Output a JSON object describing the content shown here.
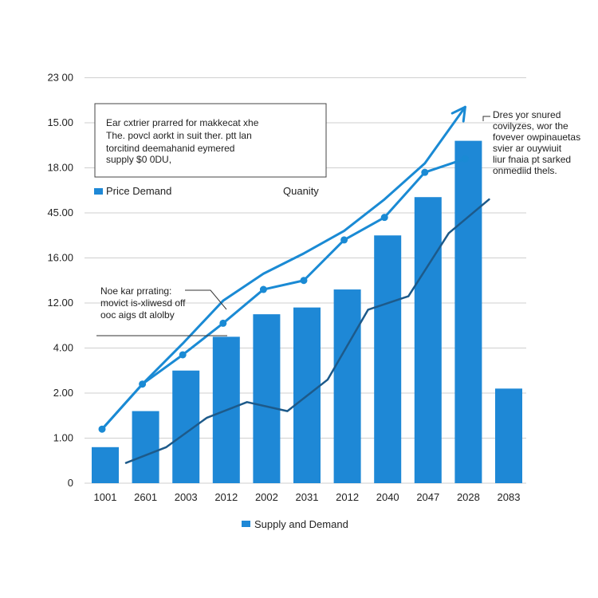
{
  "chart_data": {
    "type": "bar",
    "categories": [
      "1001",
      "2601",
      "2003",
      "2012",
      "2002",
      "2031",
      "2012",
      "2040",
      "2047",
      "2028",
      "2083"
    ],
    "y_tick_labels": [
      "0",
      "1.00",
      "2.00",
      "4.00",
      "12.00",
      "16.00",
      "45.00",
      "18.00",
      "15.00",
      "23 00"
    ],
    "grid": true,
    "bars": {
      "name": "Supply and Demand",
      "color": "#1e88d6",
      "values": [
        0.8,
        1.6,
        2.5,
        3.25,
        3.75,
        3.9,
        4.3,
        5.5,
        6.35,
        7.6,
        2.1
      ]
    },
    "lines": [
      {
        "name": "",
        "color": "#1a8ad4",
        "markers": false,
        "arrow": true,
        "values": [
          1.2,
          2.2,
          3.1,
          4.05,
          4.65,
          5.1,
          5.6,
          6.3,
          7.1,
          8.35
        ]
      },
      {
        "name": "",
        "color": "#1a8ad4",
        "markers": true,
        "arrow": false,
        "values": [
          1.2,
          2.2,
          2.85,
          3.55,
          4.3,
          4.5,
          5.4,
          5.9,
          6.9,
          7.2
        ]
      },
      {
        "name": "",
        "color": "#1d5a8a",
        "markers": false,
        "arrow": false,
        "values": [
          0.45,
          0.8,
          1.45,
          1.8,
          1.6,
          2.3,
          3.85,
          4.15,
          5.55,
          6.3
        ]
      }
    ],
    "legends": {
      "top_left": "Price Demand",
      "top_right": "Quanity",
      "bottom": "Supply and Demand"
    },
    "annotations": {
      "box": [
        "Ear cxtrier prarred for makkecat xhe",
        "The. povcl aorkt in suit ther. ptt lan",
        "torcitind deemahanid eymered",
        "supply $0 0DU,"
      ],
      "left_note": [
        "Noe kar prrating:",
        "movict is-xliwesd off",
        "ooc aigs dt alolby"
      ],
      "right_note": [
        "Dres yor snured",
        "covilyzes, wor the",
        "fovever owpinauetas",
        "svier ar ouywiuit",
        "liur fnaia pt sarked",
        "onmediid thels."
      ]
    }
  }
}
